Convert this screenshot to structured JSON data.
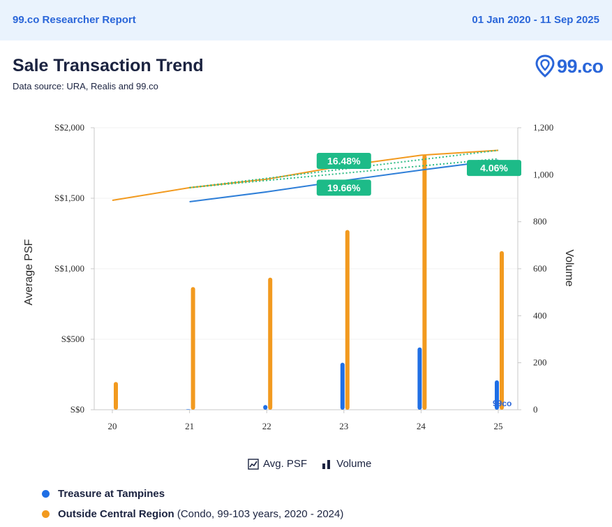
{
  "header": {
    "brand": "99.co Researcher Report",
    "date_range": "01 Jan 2020 - 11 Sep 2025"
  },
  "title": "Sale Transaction Trend",
  "subtitle": "Data source: URA, Realis and 99.co",
  "logo_text": "99.co",
  "watermark_text": "99co",
  "legend_toggles": {
    "psf_label": "Avg. PSF",
    "volume_label": "Volume"
  },
  "series_legend": [
    {
      "name": "Treasure at Tampines",
      "detail": "",
      "color": "#1f6fe5"
    },
    {
      "name": "Outside Central Region",
      "detail": "(Condo, 99-103 years, 2020 - 2024)",
      "color": "#f29a1f"
    }
  ],
  "chart_data": {
    "type": "bar",
    "x": [
      "20",
      "21",
      "22",
      "23",
      "24",
      "25"
    ],
    "xlabel": "",
    "y_left": {
      "label": "Average PSF",
      "range": [
        0,
        2000
      ],
      "ticks": [
        "S$0",
        "S$500",
        "S$1,000",
        "S$1,500",
        "S$2,000"
      ],
      "tick_values": [
        0,
        500,
        1000,
        1500,
        2000
      ]
    },
    "y_right": {
      "label": "Volume",
      "range": [
        0,
        1200
      ],
      "ticks": [
        "0",
        "200",
        "400",
        "600",
        "800",
        "1,000",
        "1,200"
      ],
      "tick_values": [
        0,
        200,
        400,
        600,
        800,
        1000,
        1200
      ]
    },
    "volume_series": [
      {
        "name": "Treasure at Tampines",
        "color": "#1f6fe5",
        "values": [
          0,
          2,
          20,
          200,
          265,
          125
        ]
      },
      {
        "name": "Outside Central Region",
        "color": "#f29a1f",
        "values": [
          118,
          522,
          562,
          765,
          1085,
          675
        ]
      }
    ],
    "psf_series": [
      {
        "name": "Treasure at Tampines",
        "color": "#2f7fd8",
        "values": [
          null,
          1475,
          1545,
          1625,
          1700,
          1770
        ]
      },
      {
        "name": "Outside Central Region",
        "color": "#f29a1f",
        "values": [
          1485,
          1575,
          1635,
          1730,
          1805,
          1840
        ]
      }
    ],
    "trend_lines": [
      {
        "color": "#2dbb84",
        "from": [
          "21",
          1575
        ],
        "to": [
          "25",
          1840
        ]
      },
      {
        "color": "#2dbb84",
        "from": [
          "21",
          1575
        ],
        "to": [
          "25",
          1780
        ]
      }
    ],
    "annotations": [
      {
        "text": "16.48%",
        "x": "23",
        "y": 1765
      },
      {
        "text": "19.66%",
        "x": "23",
        "y": 1575
      },
      {
        "text": "4.06%",
        "x": "25",
        "y": 1715
      }
    ],
    "grid": true
  }
}
